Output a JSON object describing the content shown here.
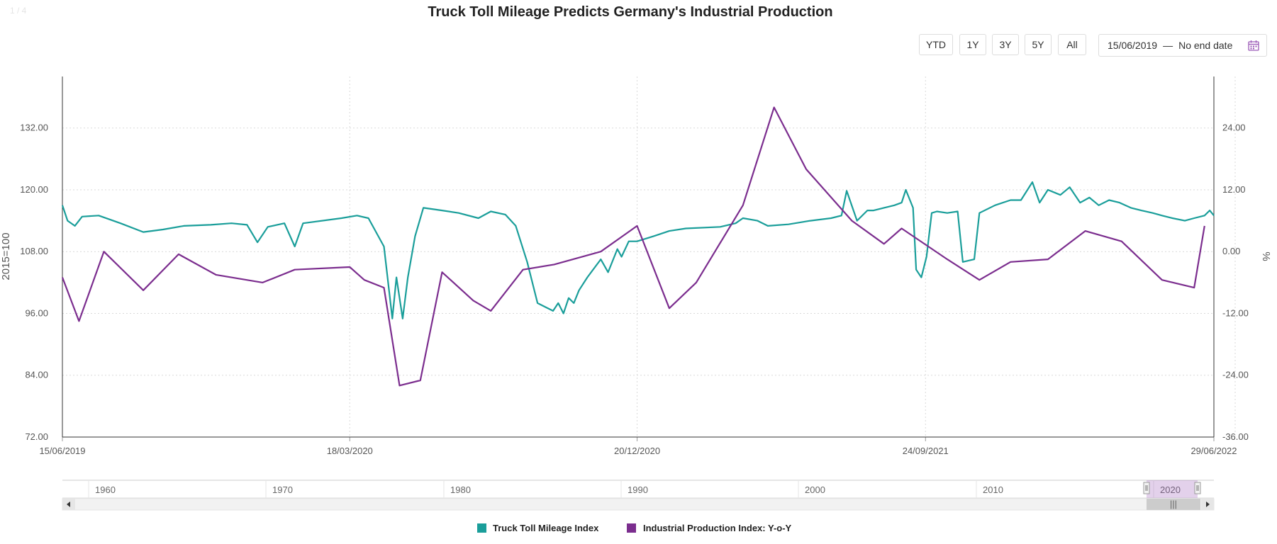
{
  "page_indicator": "1 / 4",
  "range_selector": {
    "buttons": [
      "YTD",
      "1Y",
      "3Y",
      "5Y",
      "All"
    ],
    "date_from": "15/06/2019",
    "separator": "—",
    "date_to": "No end date"
  },
  "navigator": {
    "labels": [
      "1960",
      "1970",
      "1980",
      "1990",
      "2000",
      "2010",
      "2020"
    ],
    "handle_grip": "|||"
  },
  "colors": {
    "teal": "#1a9e9a",
    "purple": "#7b2d8e",
    "grid": "#d9d9d9",
    "axis": "#333333"
  },
  "chart_data": {
    "type": "line",
    "title": "Truck Toll Mileage Predicts Germany's Industrial Production",
    "xlim": [
      "15/06/2019",
      "29/06/2022"
    ],
    "x_ticks": [
      "15/06/2019",
      "18/03/2020",
      "20/12/2020",
      "24/09/2021",
      "29/06/2022"
    ],
    "y_left": {
      "label": "2015=100",
      "ticks": [
        "72.00",
        "84.00",
        "96.00",
        "108.00",
        "120.00",
        "132.00"
      ],
      "ylim": [
        72,
        142
      ]
    },
    "y_right": {
      "label": "%",
      "ticks": [
        "-36.00",
        "-24.00",
        "-12.00",
        "0.00",
        "12.00",
        "24.00"
      ],
      "ylim": [
        -36,
        34
      ]
    },
    "grid": true,
    "legend": "bottom-center",
    "series": [
      {
        "name": "Truck Toll Mileage Index",
        "axis": "left",
        "points": [
          [
            "15/06/2019",
            117.0
          ],
          [
            "20/06/2019",
            114.0
          ],
          [
            "27/06/2019",
            113.0
          ],
          [
            "04/07/2019",
            114.8
          ],
          [
            "20/07/2019",
            115.0
          ],
          [
            "10/08/2019",
            113.5
          ],
          [
            "01/09/2019",
            111.8
          ],
          [
            "20/09/2019",
            112.3
          ],
          [
            "10/10/2019",
            113.0
          ],
          [
            "05/11/2019",
            113.2
          ],
          [
            "25/11/2019",
            113.5
          ],
          [
            "10/12/2019",
            113.2
          ],
          [
            "20/12/2019",
            109.8
          ],
          [
            "30/12/2019",
            112.8
          ],
          [
            "15/01/2020",
            113.5
          ],
          [
            "25/01/2020",
            109.0
          ],
          [
            "02/02/2020",
            113.5
          ],
          [
            "10/03/2020",
            114.5
          ],
          [
            "25/03/2020",
            115.0
          ],
          [
            "05/04/2020",
            114.5
          ],
          [
            "20/04/2020",
            109.0
          ],
          [
            "28/04/2020",
            95.0
          ],
          [
            "02/05/2020",
            103.0
          ],
          [
            "08/05/2020",
            95.0
          ],
          [
            "13/05/2020",
            103.0
          ],
          [
            "20/05/2020",
            111.0
          ],
          [
            "28/05/2020",
            116.5
          ],
          [
            "15/06/2020",
            116.0
          ],
          [
            "01/07/2020",
            115.5
          ],
          [
            "20/07/2020",
            114.5
          ],
          [
            "01/08/2020",
            115.8
          ],
          [
            "15/08/2020",
            115.2
          ],
          [
            "25/08/2020",
            113.0
          ],
          [
            "05/09/2020",
            106.0
          ],
          [
            "15/09/2020",
            98.0
          ],
          [
            "30/09/2020",
            96.5
          ],
          [
            "05/10/2020",
            98.0
          ],
          [
            "10/10/2020",
            96.0
          ],
          [
            "15/10/2020",
            99.0
          ],
          [
            "20/10/2020",
            98.0
          ],
          [
            "25/10/2020",
            100.5
          ],
          [
            "02/11/2020",
            103.0
          ],
          [
            "15/11/2020",
            106.5
          ],
          [
            "22/11/2020",
            104.0
          ],
          [
            "01/12/2020",
            108.5
          ],
          [
            "05/12/2020",
            107.0
          ],
          [
            "12/12/2020",
            110.0
          ],
          [
            "20/12/2020",
            110.0
          ],
          [
            "05/01/2021",
            111.0
          ],
          [
            "20/01/2021",
            112.0
          ],
          [
            "05/02/2021",
            112.5
          ],
          [
            "10/03/2021",
            112.8
          ],
          [
            "25/03/2021",
            113.5
          ],
          [
            "01/04/2021",
            114.5
          ],
          [
            "15/04/2021",
            114.0
          ],
          [
            "25/04/2021",
            113.0
          ],
          [
            "15/05/2021",
            113.3
          ],
          [
            "05/06/2021",
            114.0
          ],
          [
            "25/06/2021",
            114.5
          ],
          [
            "05/07/2021",
            115.0
          ],
          [
            "10/07/2021",
            119.8
          ],
          [
            "20/07/2021",
            114.0
          ],
          [
            "30/07/2021",
            116.0
          ],
          [
            "05/08/2021",
            116.0
          ],
          [
            "15/08/2021",
            116.5
          ],
          [
            "25/08/2021",
            117.0
          ],
          [
            "01/09/2021",
            117.5
          ],
          [
            "05/09/2021",
            120.0
          ],
          [
            "12/09/2021",
            116.5
          ],
          [
            "15/09/2021",
            104.5
          ],
          [
            "20/09/2021",
            103.0
          ],
          [
            "25/09/2021",
            107.0
          ],
          [
            "30/09/2021",
            115.5
          ],
          [
            "05/10/2021",
            115.8
          ],
          [
            "15/10/2021",
            115.5
          ],
          [
            "25/10/2021",
            115.8
          ],
          [
            "30/10/2021",
            106.0
          ],
          [
            "10/11/2021",
            106.5
          ],
          [
            "15/11/2021",
            115.5
          ],
          [
            "30/11/2021",
            117.0
          ],
          [
            "15/12/2021",
            118.0
          ],
          [
            "25/12/2021",
            118.0
          ],
          [
            "05/01/2022",
            121.5
          ],
          [
            "12/01/2022",
            117.5
          ],
          [
            "20/01/2022",
            120.0
          ],
          [
            "01/02/2022",
            119.0
          ],
          [
            "10/02/2022",
            120.5
          ],
          [
            "20/02/2022",
            117.5
          ],
          [
            "01/03/2022",
            118.5
          ],
          [
            "10/03/2022",
            117.0
          ],
          [
            "20/03/2022",
            118.0
          ],
          [
            "30/03/2022",
            117.5
          ],
          [
            "10/04/2022",
            116.5
          ],
          [
            "20/04/2022",
            116.0
          ],
          [
            "01/05/2022",
            115.5
          ],
          [
            "10/05/2022",
            115.0
          ],
          [
            "20/05/2022",
            114.5
          ],
          [
            "01/06/2022",
            114.0
          ],
          [
            "10/06/2022",
            114.5
          ],
          [
            "20/06/2022",
            115.0
          ],
          [
            "25/06/2022",
            116.0
          ],
          [
            "29/06/2022",
            115.0
          ]
        ]
      },
      {
        "name": "Industrial Production Index: Y-o-Y",
        "axis": "right",
        "points": [
          [
            "15/06/2019",
            -5.0
          ],
          [
            "01/07/2019",
            -13.5
          ],
          [
            "25/07/2019",
            0.0
          ],
          [
            "01/09/2019",
            -7.5
          ],
          [
            "05/10/2019",
            -0.5
          ],
          [
            "10/11/2019",
            -4.5
          ],
          [
            "25/12/2019",
            -6.0
          ],
          [
            "25/01/2020",
            -3.5
          ],
          [
            "18/03/2020",
            -3.0
          ],
          [
            "01/04/2020",
            -5.5
          ],
          [
            "20/04/2020",
            -7.0
          ],
          [
            "05/05/2020",
            -26.0
          ],
          [
            "25/05/2020",
            -25.0
          ],
          [
            "15/06/2020",
            -4.0
          ],
          [
            "15/07/2020",
            -9.5
          ],
          [
            "01/08/2020",
            -11.5
          ],
          [
            "01/09/2020",
            -3.5
          ],
          [
            "01/10/2020",
            -2.5
          ],
          [
            "15/11/2020",
            0.0
          ],
          [
            "20/12/2020",
            5.0
          ],
          [
            "20/01/2021",
            -11.0
          ],
          [
            "15/02/2021",
            -6.0
          ],
          [
            "01/04/2021",
            9.0
          ],
          [
            "01/05/2021",
            28.0
          ],
          [
            "01/06/2021",
            16.0
          ],
          [
            "15/07/2021",
            6.0
          ],
          [
            "15/08/2021",
            1.5
          ],
          [
            "01/09/2021",
            4.5
          ],
          [
            "15/10/2021",
            -1.5
          ],
          [
            "15/11/2021",
            -5.5
          ],
          [
            "15/12/2021",
            -2.0
          ],
          [
            "20/01/2022",
            -1.5
          ],
          [
            "25/02/2022",
            4.0
          ],
          [
            "01/04/2022",
            2.0
          ],
          [
            "10/05/2022",
            -5.5
          ],
          [
            "10/06/2022",
            -7.0
          ],
          [
            "20/06/2022",
            5.0
          ]
        ]
      }
    ]
  }
}
